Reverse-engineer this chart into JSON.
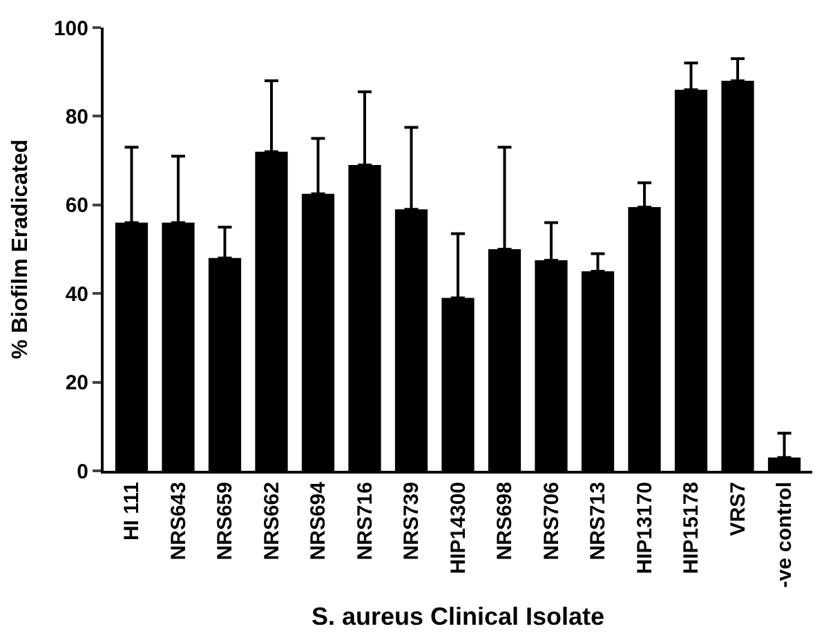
{
  "chart_data": {
    "type": "bar",
    "xlabel": "S. aureus Clinical Isolate",
    "ylabel": "% Biofilm Eradicated",
    "categories": [
      "HI 111",
      "NRS643",
      "NRS659",
      "NRS662",
      "NRS694",
      "NRS716",
      "NRS739",
      "HIP14300",
      "NRS698",
      "NRS706",
      "NRS713",
      "HIP13170",
      "HIP15178",
      "VRS7",
      "-ve control"
    ],
    "values": [
      56,
      56,
      48,
      72,
      62.5,
      69,
      59,
      39,
      50,
      47.5,
      45,
      59.5,
      86,
      88,
      3
    ],
    "errors": [
      [
        56,
        73
      ],
      [
        56,
        71
      ],
      [
        48,
        55
      ],
      [
        72,
        88
      ],
      [
        62.5,
        75
      ],
      [
        69,
        85.5
      ],
      [
        59,
        77.5
      ],
      [
        39,
        53.5
      ],
      [
        50,
        73
      ],
      [
        47.5,
        56
      ],
      [
        45,
        49
      ],
      [
        59.5,
        65
      ],
      [
        86,
        92
      ],
      [
        88,
        93
      ],
      [
        3,
        8.5
      ]
    ],
    "color": "#000000",
    "ylim": [
      0,
      100
    ],
    "yticks": [
      0,
      20,
      40,
      60,
      80,
      100
    ]
  }
}
